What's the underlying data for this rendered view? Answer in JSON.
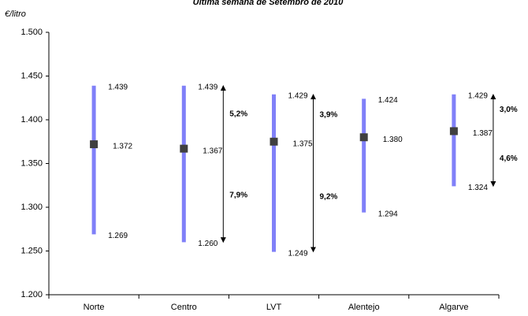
{
  "chart_data": {
    "type": "range",
    "title": "Última semana de Setembro de 2010",
    "y_label": "€/litro",
    "categories": [
      "Norte",
      "Centro",
      "LVT",
      "Alentejo",
      "Algarve"
    ],
    "high": {
      "values": [
        1.439,
        1.439,
        1.429,
        1.424,
        1.429
      ],
      "value_labels": [
        "1.439",
        "1.439",
        "1.429",
        "1.424",
        "1.429"
      ]
    },
    "mean": {
      "values": [
        1.372,
        1.367,
        1.375,
        1.38,
        1.387
      ],
      "value_labels": [
        "1.372",
        "1.367",
        "1.375",
        "1.380",
        "1.387"
      ]
    },
    "low": {
      "values": [
        1.269,
        1.26,
        1.249,
        1.294,
        1.324
      ],
      "value_labels": [
        "1.269",
        "1.260",
        "1.249",
        "1.294",
        "1.324"
      ]
    },
    "up_pct": {
      "values": [
        null,
        5.2,
        3.9,
        null,
        3.0
      ],
      "value_labels": [
        null,
        "5,2%",
        "3,9%",
        null,
        "3,0%"
      ]
    },
    "down_pct": {
      "values": [
        null,
        7.9,
        9.2,
        null,
        4.6
      ],
      "value_labels": [
        null,
        "7,9%",
        "9,2%",
        null,
        "4,6%"
      ]
    },
    "range_color": "#8080f8",
    "marker_color": "#404040",
    "ylim": [
      1.2,
      1.5
    ],
    "yticks": [
      {
        "value": 1.2,
        "label": "1.200"
      },
      {
        "value": 1.25,
        "label": "1.250"
      },
      {
        "value": 1.3,
        "label": "1.300"
      },
      {
        "value": 1.35,
        "label": "1.350"
      },
      {
        "value": 1.4,
        "label": "1.400"
      },
      {
        "value": 1.45,
        "label": "1.450"
      },
      {
        "value": 1.5,
        "label": "1.500"
      }
    ]
  }
}
